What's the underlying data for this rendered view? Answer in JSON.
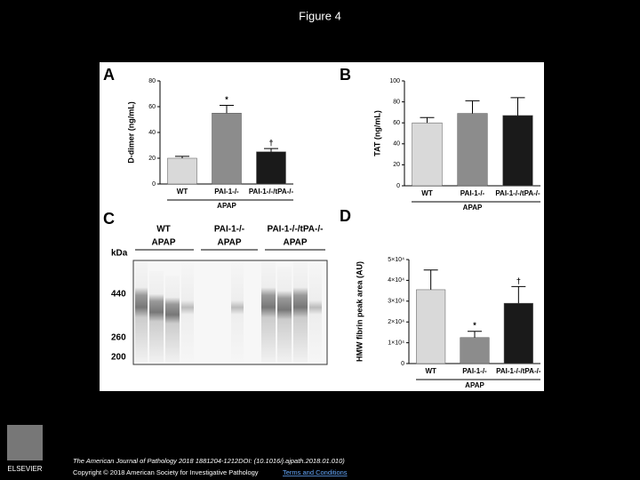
{
  "title": "Figure 4",
  "chart_data": [
    {
      "type": "bar",
      "panel": "A",
      "y_label": "D-dimer (ng/mL)",
      "group_label": "APAP",
      "categories": [
        "WT",
        "PAI-1-/-",
        "PAI-1-/-/tPA-/-"
      ],
      "values": [
        20,
        55,
        25
      ],
      "errors": [
        1.5,
        6,
        2.5
      ],
      "annotations": [
        null,
        "*",
        "†"
      ],
      "colors": [
        "#d9d9d9",
        "#8c8c8c",
        "#1a1a1a"
      ],
      "ylim": [
        0,
        80
      ],
      "yticks": [
        0,
        20,
        40,
        60,
        80
      ]
    },
    {
      "type": "bar",
      "panel": "B",
      "y_label": "TAT (ng/mL)",
      "group_label": "APAP",
      "categories": [
        "WT",
        "PAI-1-/-",
        "PAI-1-/-/tPA-/-"
      ],
      "values": [
        60,
        69,
        67
      ],
      "errors": [
        5,
        12,
        17
      ],
      "annotations": [
        null,
        null,
        null
      ],
      "colors": [
        "#d9d9d9",
        "#8c8c8c",
        "#1a1a1a"
      ],
      "ylim": [
        0,
        100
      ],
      "yticks": [
        0,
        20,
        40,
        60,
        80,
        100
      ]
    },
    {
      "type": "bar",
      "panel": "D",
      "y_label": "HMW fibrin peak area (AU)",
      "group_label": "APAP",
      "categories": [
        "WT",
        "PAI-1-/-",
        "PAI-1-/-/tPA-/-"
      ],
      "values": [
        35500,
        12500,
        29000
      ],
      "errors": [
        9500,
        3000,
        8000
      ],
      "annotations": [
        null,
        "*",
        "†"
      ],
      "colors": [
        "#d9d9d9",
        "#8c8c8c",
        "#1a1a1a"
      ],
      "ylim": [
        0,
        50000
      ],
      "yticks": [
        0,
        {
          "value": 10000,
          "label": "1×10⁴"
        },
        {
          "value": 20000,
          "label": "2×10⁴"
        },
        {
          "value": 30000,
          "label": "3×10⁴"
        },
        {
          "value": 40000,
          "label": "4×10⁴"
        },
        {
          "value": 50000,
          "label": "5×10⁴"
        }
      ]
    }
  ],
  "gel": {
    "panel": "C",
    "groups": [
      "WT",
      "PAI-1-/-",
      "PAI-1-/-/tPA-/-"
    ],
    "treatment": [
      "APAP",
      "APAP",
      "APAP"
    ],
    "unit": "kDa",
    "markers": [
      "440",
      "260",
      "200"
    ]
  },
  "footer": {
    "citation": "The American Journal of Pathology 2018 1881204-1212DOI: (10.1016/j.ajpath.2018.01.010)",
    "copyright": "Copyright © 2018 American Society for Investigative Pathology",
    "link": "Terms and Conditions",
    "publisher": "ELSEVIER"
  }
}
